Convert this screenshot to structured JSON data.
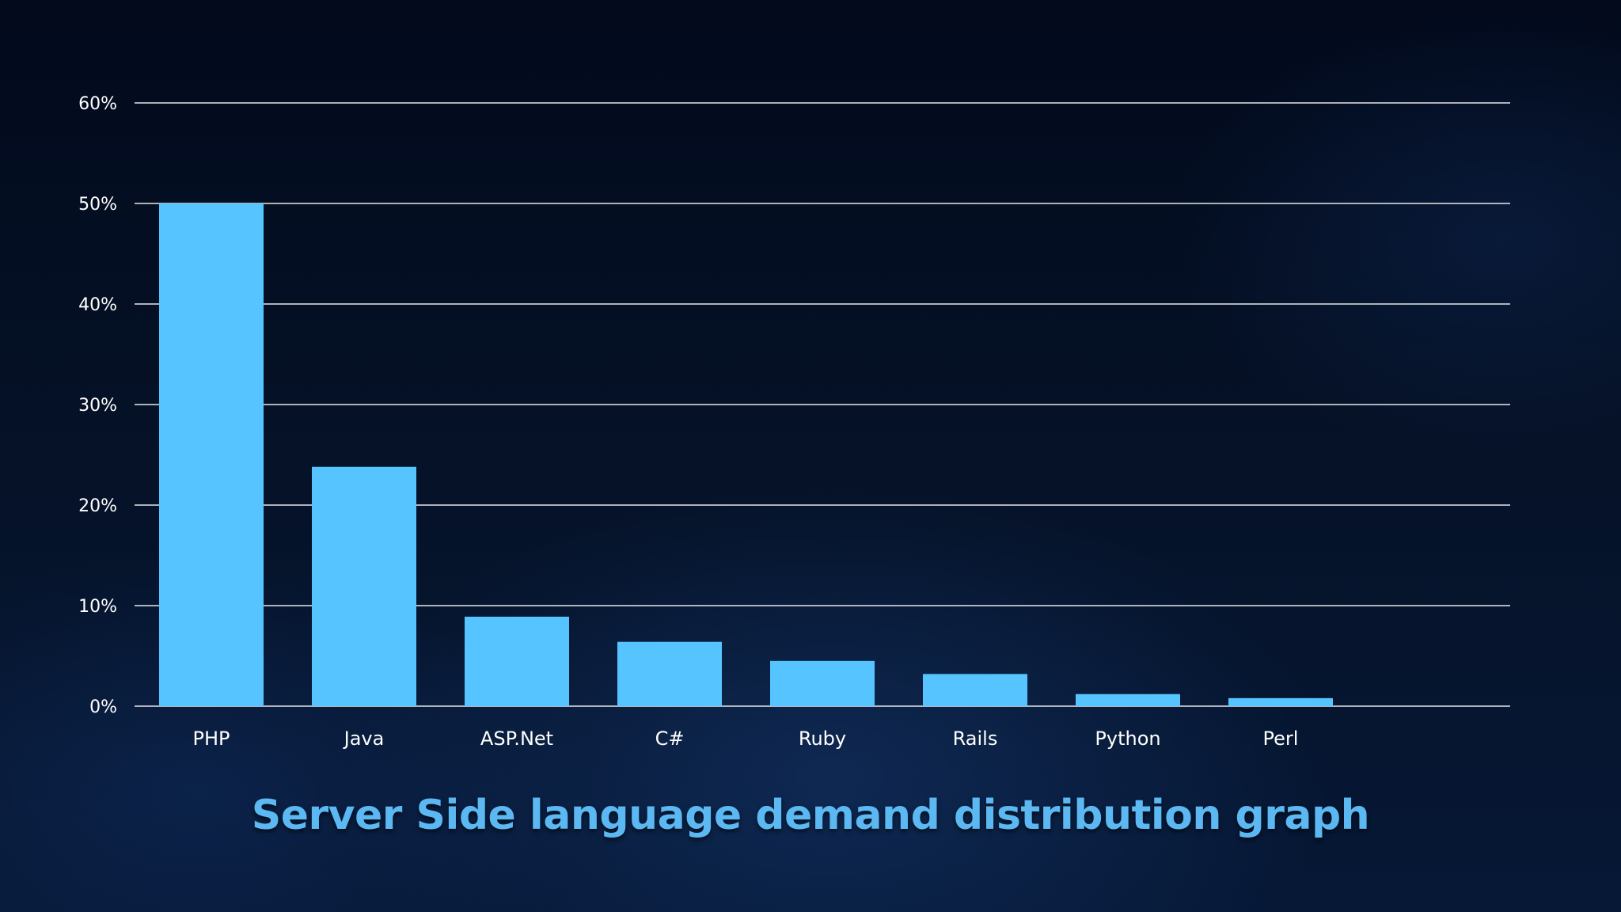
{
  "chart_data": {
    "type": "bar",
    "title": "Server Side language demand distribution graph",
    "categories": [
      "PHP",
      "Java",
      "ASP.Net",
      "C#",
      "Ruby",
      "Rails",
      "Python",
      "Perl"
    ],
    "values": [
      50,
      23.8,
      8.9,
      6.4,
      4.5,
      3.2,
      1.2,
      0.8
    ],
    "ylim": [
      0,
      60
    ],
    "yticks": [
      0,
      10,
      20,
      30,
      40,
      50,
      60
    ],
    "ytick_labels": [
      "0%",
      "10%",
      "20%",
      "30%",
      "40%",
      "50%",
      "60%"
    ],
    "grid": true,
    "bar_color": "#56c5ff",
    "title_color": "#5bb8f2"
  }
}
